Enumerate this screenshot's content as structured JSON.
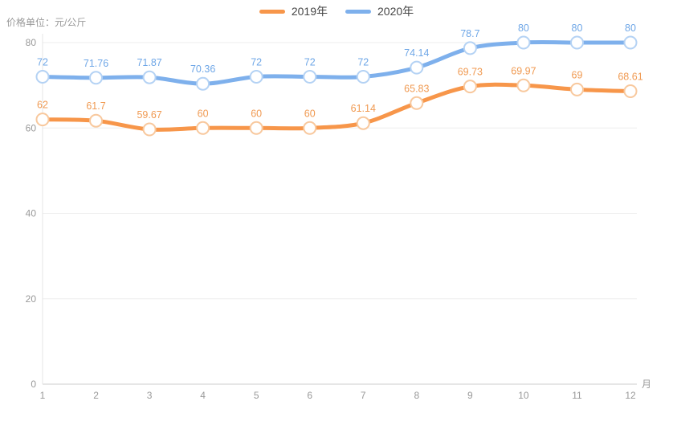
{
  "title": "价格单位：元/公斤",
  "legend": {
    "items": [
      {
        "label": "2019年",
        "color": "#f7964a"
      },
      {
        "label": "2020年",
        "color": "#7eb0ec"
      }
    ],
    "position": "top-center"
  },
  "chart_data": {
    "type": "line",
    "smooth": true,
    "x": [
      1,
      2,
      3,
      4,
      5,
      6,
      7,
      8,
      9,
      10,
      11,
      12
    ],
    "xlabel": "月",
    "ylabel": "价格单位：元/公斤",
    "ylim": [
      0,
      80
    ],
    "yticks": [
      0,
      20,
      40,
      60,
      80
    ],
    "grid": "horizontal-only",
    "legend_position": "top-center",
    "series": [
      {
        "name": "2019年",
        "color": "#f7964a",
        "marker_stroke": "#f8c89d",
        "label_color": "#f09a52",
        "values": [
          62,
          61.7,
          59.67,
          60,
          60,
          60,
          61.14,
          65.83,
          69.73,
          69.97,
          69,
          68.61
        ]
      },
      {
        "name": "2020年",
        "color": "#7eb0ec",
        "marker_stroke": "#b4d2f4",
        "label_color": "#6fa7e7",
        "values": [
          72,
          71.76,
          71.87,
          70.36,
          72,
          72,
          72,
          74.14,
          78.7,
          80,
          80,
          80
        ]
      }
    ],
    "colors": {
      "grid_line": "#eeeeee",
      "axis_line": "#cccccc",
      "y_axis_line": "#e6e6e6",
      "tick_text": "#999999",
      "marker_fill": "#ffffff"
    }
  }
}
